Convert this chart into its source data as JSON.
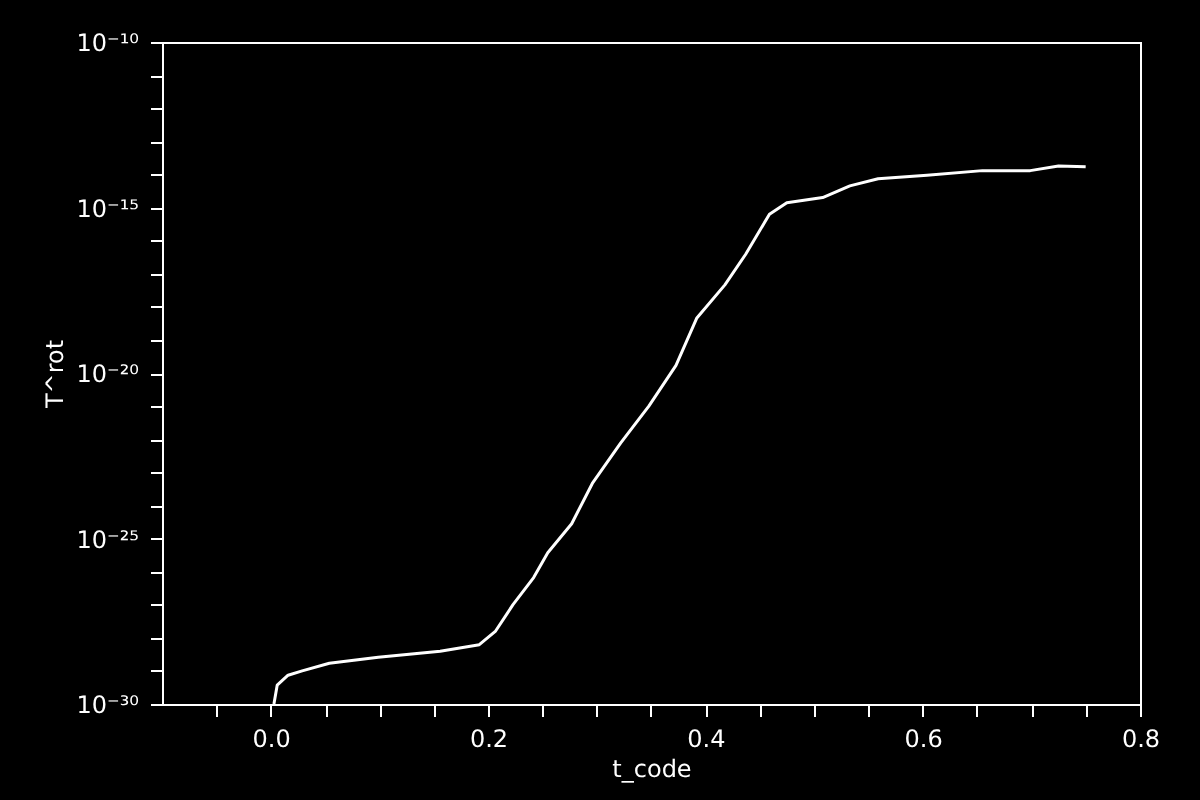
{
  "chart_data": {
    "type": "line",
    "xlabel": "t_code",
    "ylabel": "T^rot",
    "log": "y",
    "grid": false,
    "marker": "none",
    "line_style": "solid",
    "xlim": [
      -0.1,
      0.8
    ],
    "xticks": [
      {
        "value": -0.05,
        "label": null
      },
      "0.0",
      {
        "value": 0.05,
        "label": null
      },
      {
        "value": 0.1,
        "label": null
      },
      {
        "value": 0.15,
        "label": null
      },
      0.2,
      {
        "value": 0.25,
        "label": null
      },
      {
        "value": 0.3,
        "label": null
      },
      {
        "value": 0.35,
        "label": null
      },
      0.4,
      {
        "value": 0.45,
        "label": null
      },
      {
        "value": 0.5,
        "label": null
      },
      {
        "value": 0.55,
        "label": null
      },
      0.6,
      {
        "value": 0.65,
        "label": null
      },
      {
        "value": 0.7,
        "label": null
      },
      {
        "value": 0.75,
        "label": null
      },
      0.8
    ],
    "ylim": [
      1e-30,
      1e-10
    ],
    "yticks": [
      {
        "value": 1e-30,
        "label": "10⁻³⁰"
      },
      {
        "value": 1e-29,
        "label": null
      },
      {
        "value": 1e-28,
        "label": null
      },
      {
        "value": 1e-27,
        "label": null
      },
      {
        "value": 1e-26,
        "label": null
      },
      {
        "value": 1e-25,
        "label": "10⁻²⁵"
      },
      {
        "value": 1e-24,
        "label": null
      },
      {
        "value": 1e-23,
        "label": null
      },
      {
        "value": 1e-22,
        "label": null
      },
      {
        "value": 1e-21,
        "label": null
      },
      {
        "value": 1e-20,
        "label": "10⁻²⁰"
      },
      {
        "value": 1e-19,
        "label": null
      },
      {
        "value": 1e-18,
        "label": null
      },
      {
        "value": 1e-17,
        "label": null
      },
      {
        "value": 1e-16,
        "label": null
      },
      {
        "value": 1e-15,
        "label": "10⁻¹⁵"
      },
      {
        "value": 1e-14,
        "label": null
      },
      {
        "value": 1e-13,
        "label": null
      },
      {
        "value": 1e-12,
        "label": null
      },
      {
        "value": 1e-11,
        "label": null
      },
      {
        "value": 1e-10,
        "label": "10⁻¹⁰"
      }
    ],
    "series": [
      {
        "color": "#ffffff",
        "x": [
          0.003,
          0.006,
          0.016,
          0.029,
          0.054,
          0.099,
          0.156,
          0.192,
          0.207,
          0.223,
          0.242,
          0.255,
          0.277,
          0.296,
          0.322,
          0.348,
          0.373,
          0.392,
          0.418,
          0.437,
          0.459,
          0.475,
          0.508,
          0.533,
          0.559,
          0.604,
          0.655,
          0.699,
          0.725,
          0.75
        ],
        "values": [
          1e-30,
          3.7e-30,
          7.4e-30,
          1e-29,
          1.7e-29,
          2.6e-29,
          3.9e-29,
          6.2e-29,
          1.6e-28,
          1e-27,
          6.6e-27,
          3.7e-26,
          2.8e-25,
          4.6e-24,
          7.6e-23,
          1e-21,
          1.7e-20,
          4.5e-19,
          4.6e-18,
          3.8e-17,
          6.3e-16,
          1.4e-15,
          2e-15,
          4.5e-15,
          7.4e-15,
          9.5e-15,
          1.3e-14,
          1.3e-14,
          1.8e-14,
          1.7e-14
        ]
      }
    ]
  }
}
